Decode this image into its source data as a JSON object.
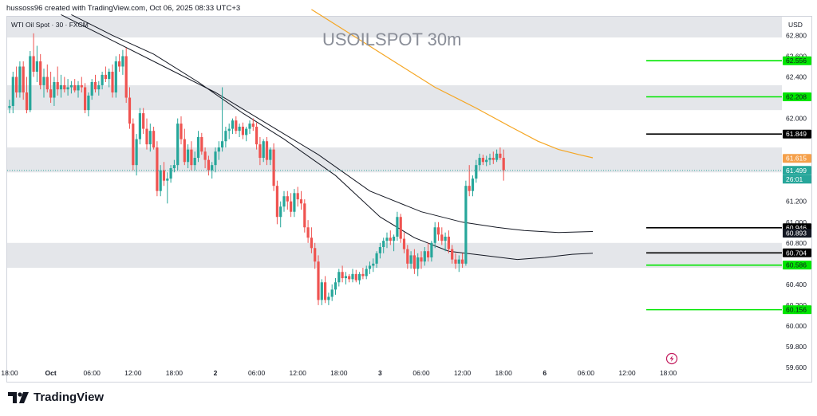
{
  "header": {
    "byline": "hussoss96 created with TradingView.com, Oct 06, 2025 08:33 UTC+3"
  },
  "footer": {
    "brand": "TradingView"
  },
  "chart_data": {
    "type": "candlestick",
    "title": "USOILSPOT 30m",
    "symbol_label": "WTI Oil Spot · 30 · FXCM",
    "currency": "USD",
    "ylim": [
      59.6,
      62.98
    ],
    "y_ticks": [
      {
        "v": 62.8,
        "label": "62.800"
      },
      {
        "v": 62.6,
        "label": "62.600"
      },
      {
        "v": 62.4,
        "label": "62.400"
      },
      {
        "v": 62.0,
        "label": "62.000"
      },
      {
        "v": 61.2,
        "label": "61.200"
      },
      {
        "v": 61.0,
        "label": "61.000"
      },
      {
        "v": 60.8,
        "label": "60.800"
      },
      {
        "v": 60.4,
        "label": "60.400"
      },
      {
        "v": 60.2,
        "label": "60.200"
      },
      {
        "v": 60.0,
        "label": "60.000"
      },
      {
        "v": 59.8,
        "label": "59.800"
      },
      {
        "v": 59.6,
        "label": "59.600"
      }
    ],
    "x_labels": [
      {
        "label": "18:00",
        "i": 0
      },
      {
        "label": "Oct",
        "i": 12
      },
      {
        "label": "06:00",
        "i": 24
      },
      {
        "label": "12:00",
        "i": 36
      },
      {
        "label": "18:00",
        "i": 48
      },
      {
        "label": "2",
        "i": 60
      },
      {
        "label": "06:00",
        "i": 72
      },
      {
        "label": "12:00",
        "i": 84
      },
      {
        "label": "18:00",
        "i": 96
      },
      {
        "label": "3",
        "i": 108
      },
      {
        "label": "06:00",
        "i": 120
      },
      {
        "label": "12:00",
        "i": 132
      },
      {
        "label": "18:00",
        "i": 144
      },
      {
        "label": "6",
        "i": 156
      },
      {
        "label": "06:00",
        "i": 168
      },
      {
        "label": "12:00",
        "i": 180
      },
      {
        "label": "18:00",
        "i": 192
      }
    ],
    "zones": [
      {
        "from": 62.78,
        "to": 62.98
      },
      {
        "from": 62.08,
        "to": 62.32
      },
      {
        "from": 61.48,
        "to": 61.72
      },
      {
        "from": 60.56,
        "to": 60.8
      }
    ],
    "levels": [
      {
        "value": 62.556,
        "label": "62.556",
        "color": "#00e600"
      },
      {
        "value": 62.208,
        "label": "62.208",
        "color": "#00e600"
      },
      {
        "value": 61.849,
        "label": "61.849",
        "color": "#000000"
      },
      {
        "value": 60.946,
        "label": "60.946",
        "color": "#000000"
      },
      {
        "value": 60.704,
        "label": "60.704",
        "color": "#000000"
      },
      {
        "value": 60.586,
        "label": "60.586",
        "color": "#00e600"
      },
      {
        "value": 60.156,
        "label": "60.156",
        "color": "#00e600"
      }
    ],
    "price_tags": [
      {
        "value": 61.615,
        "label": "61.615",
        "bg": "#f5a04a",
        "fg": "#ffffff"
      },
      {
        "value": 61.499,
        "label": "61.499",
        "bg": "#26a69a",
        "fg": "#ffffff"
      },
      {
        "value": 60.893,
        "label": "60.893",
        "bg": "#131722",
        "fg": "#ffffff"
      }
    ],
    "countdown": "26:01",
    "last_price": 61.499,
    "colors": {
      "up": "#26a69a",
      "down": "#ef5350",
      "ma_orange": "#f5a623",
      "ma_dark": "#131722"
    },
    "candles": [
      [
        62.1,
        62.18,
        62.05,
        62.12
      ],
      [
        62.12,
        62.45,
        62.05,
        62.4
      ],
      [
        62.4,
        62.5,
        62.2,
        62.25
      ],
      [
        62.25,
        62.55,
        62.2,
        62.5
      ],
      [
        62.5,
        62.55,
        62.18,
        62.25
      ],
      [
        62.25,
        62.4,
        62.05,
        62.08
      ],
      [
        62.08,
        62.65,
        62.06,
        62.6
      ],
      [
        62.6,
        62.82,
        62.4,
        62.45
      ],
      [
        62.45,
        62.7,
        62.35,
        62.55
      ],
      [
        62.55,
        62.62,
        62.28,
        62.32
      ],
      [
        62.32,
        62.48,
        62.2,
        62.4
      ],
      [
        62.4,
        62.52,
        62.25,
        62.28
      ],
      [
        62.28,
        62.45,
        62.15,
        62.2
      ],
      [
        62.2,
        62.4,
        62.12,
        62.35
      ],
      [
        62.35,
        62.5,
        62.22,
        62.28
      ],
      [
        62.28,
        62.42,
        62.2,
        62.32
      ],
      [
        62.32,
        62.4,
        62.25,
        62.28
      ],
      [
        62.28,
        62.38,
        62.22,
        62.3
      ],
      [
        62.3,
        62.36,
        62.24,
        62.32
      ],
      [
        62.32,
        62.38,
        62.25,
        62.27
      ],
      [
        62.27,
        62.36,
        62.2,
        62.32
      ],
      [
        62.32,
        62.4,
        62.25,
        62.3
      ],
      [
        62.3,
        62.34,
        62.05,
        62.08
      ],
      [
        62.08,
        62.25,
        62.02,
        62.22
      ],
      [
        62.22,
        62.38,
        62.18,
        62.35
      ],
      [
        62.35,
        62.42,
        62.25,
        62.28
      ],
      [
        62.28,
        62.36,
        62.22,
        62.32
      ],
      [
        62.32,
        62.45,
        62.28,
        62.42
      ],
      [
        62.42,
        62.5,
        62.35,
        62.38
      ],
      [
        62.38,
        62.48,
        62.3,
        62.45
      ],
      [
        62.45,
        62.52,
        62.2,
        62.25
      ],
      [
        62.25,
        62.6,
        62.2,
        62.55
      ],
      [
        62.55,
        62.62,
        62.45,
        62.5
      ],
      [
        62.5,
        62.66,
        62.42,
        62.6
      ],
      [
        62.6,
        62.68,
        62.15,
        62.2
      ],
      [
        62.2,
        62.3,
        61.9,
        61.95
      ],
      [
        61.95,
        62.0,
        61.5,
        61.55
      ],
      [
        61.55,
        61.85,
        61.45,
        61.8
      ],
      [
        61.8,
        62.1,
        61.75,
        62.05
      ],
      [
        62.05,
        62.1,
        61.85,
        61.9
      ],
      [
        61.9,
        62.0,
        61.7,
        61.75
      ],
      [
        61.75,
        61.95,
        61.68,
        61.88
      ],
      [
        61.88,
        61.92,
        61.7,
        61.72
      ],
      [
        61.72,
        61.78,
        61.25,
        61.3
      ],
      [
        61.3,
        61.55,
        61.25,
        61.5
      ],
      [
        61.5,
        61.58,
        61.35,
        61.4
      ],
      [
        61.4,
        61.48,
        61.18,
        61.42
      ],
      [
        61.42,
        61.55,
        61.38,
        61.52
      ],
      [
        61.52,
        61.6,
        61.48,
        61.55
      ],
      [
        61.55,
        62.0,
        61.5,
        61.95
      ],
      [
        61.95,
        62.02,
        61.75,
        61.8
      ],
      [
        61.8,
        61.9,
        61.55,
        61.58
      ],
      [
        61.58,
        61.75,
        61.52,
        61.7
      ],
      [
        61.7,
        61.78,
        61.5,
        61.55
      ],
      [
        61.55,
        61.68,
        61.5,
        61.62
      ],
      [
        61.62,
        61.88,
        61.58,
        61.82
      ],
      [
        61.82,
        61.86,
        61.65,
        61.68
      ],
      [
        61.68,
        61.72,
        61.52,
        61.6
      ],
      [
        61.6,
        61.64,
        61.45,
        61.5
      ],
      [
        61.5,
        61.58,
        61.42,
        61.55
      ],
      [
        61.55,
        61.72,
        61.48,
        61.68
      ],
      [
        61.68,
        61.78,
        61.6,
        61.72
      ],
      [
        61.72,
        62.3,
        61.68,
        61.78
      ],
      [
        61.78,
        61.92,
        61.72,
        61.88
      ],
      [
        61.88,
        61.95,
        61.8,
        61.9
      ],
      [
        61.9,
        62.0,
        61.85,
        61.98
      ],
      [
        61.98,
        62.02,
        61.85,
        61.88
      ],
      [
        61.88,
        61.95,
        61.82,
        61.92
      ],
      [
        61.92,
        61.96,
        61.8,
        61.84
      ],
      [
        61.84,
        61.92,
        61.78,
        61.9
      ],
      [
        61.9,
        61.98,
        61.85,
        61.95
      ],
      [
        61.95,
        62.0,
        61.88,
        61.92
      ],
      [
        61.92,
        61.96,
        61.7,
        61.75
      ],
      [
        61.75,
        61.82,
        61.55,
        61.62
      ],
      [
        61.62,
        61.8,
        61.58,
        61.78
      ],
      [
        61.78,
        61.82,
        61.55,
        61.6
      ],
      [
        61.6,
        61.72,
        61.55,
        61.7
      ],
      [
        61.7,
        61.76,
        61.3,
        61.35
      ],
      [
        61.35,
        61.4,
        60.98,
        61.05
      ],
      [
        61.05,
        61.2,
        60.95,
        61.15
      ],
      [
        61.15,
        61.3,
        61.1,
        61.25
      ],
      [
        61.25,
        61.3,
        61.12,
        61.2
      ],
      [
        61.2,
        61.28,
        61.05,
        61.1
      ],
      [
        61.1,
        61.32,
        61.05,
        61.28
      ],
      [
        61.28,
        61.34,
        61.15,
        61.22
      ],
      [
        61.22,
        61.3,
        61.12,
        61.18
      ],
      [
        61.18,
        61.22,
        60.9,
        60.95
      ],
      [
        60.95,
        61.02,
        60.8,
        60.85
      ],
      [
        60.85,
        60.95,
        60.7,
        60.75
      ],
      [
        60.75,
        60.8,
        60.55,
        60.62
      ],
      [
        60.62,
        60.68,
        60.2,
        60.25
      ],
      [
        60.25,
        60.45,
        60.2,
        60.42
      ],
      [
        60.42,
        60.48,
        60.22,
        60.25
      ],
      [
        60.25,
        60.32,
        60.2,
        60.28
      ],
      [
        60.28,
        60.4,
        60.24,
        60.35
      ],
      [
        60.35,
        60.46,
        60.3,
        60.42
      ],
      [
        60.42,
        60.55,
        60.38,
        60.52
      ],
      [
        60.52,
        60.58,
        60.42,
        60.46
      ],
      [
        60.46,
        60.52,
        60.4,
        60.48
      ],
      [
        60.48,
        60.5,
        60.42,
        60.45
      ],
      [
        60.45,
        60.55,
        60.42,
        60.5
      ],
      [
        60.5,
        60.54,
        60.42,
        60.44
      ],
      [
        60.44,
        60.52,
        60.4,
        60.5
      ],
      [
        60.5,
        60.56,
        60.45,
        60.48
      ],
      [
        60.48,
        60.58,
        60.45,
        60.55
      ],
      [
        60.55,
        60.62,
        60.5,
        60.58
      ],
      [
        60.58,
        60.65,
        60.52,
        60.6
      ],
      [
        60.6,
        60.72,
        60.56,
        60.7
      ],
      [
        60.7,
        60.8,
        60.65,
        60.76
      ],
      [
        60.76,
        60.85,
        60.7,
        60.82
      ],
      [
        60.82,
        60.9,
        60.75,
        60.85
      ],
      [
        60.85,
        60.92,
        60.78,
        60.82
      ],
      [
        60.82,
        60.88,
        60.72,
        60.86
      ],
      [
        60.86,
        61.1,
        60.82,
        61.05
      ],
      [
        61.05,
        61.08,
        60.8,
        60.84
      ],
      [
        60.84,
        60.9,
        60.7,
        60.74
      ],
      [
        60.74,
        60.78,
        60.55,
        60.6
      ],
      [
        60.6,
        60.72,
        60.55,
        60.68
      ],
      [
        60.68,
        60.74,
        60.5,
        60.55
      ],
      [
        60.55,
        60.7,
        60.48,
        60.66
      ],
      [
        60.66,
        60.72,
        60.55,
        60.62
      ],
      [
        60.62,
        60.76,
        60.58,
        60.72
      ],
      [
        60.72,
        60.8,
        60.62,
        60.66
      ],
      [
        60.66,
        60.82,
        60.62,
        60.8
      ],
      [
        60.8,
        61.0,
        60.75,
        60.95
      ],
      [
        60.95,
        61.0,
        60.82,
        60.88
      ],
      [
        60.88,
        60.95,
        60.78,
        60.82
      ],
      [
        60.82,
        60.9,
        60.72,
        60.86
      ],
      [
        60.86,
        60.92,
        60.7,
        60.74
      ],
      [
        60.74,
        60.78,
        60.6,
        60.64
      ],
      [
        60.64,
        60.7,
        60.55,
        60.6
      ],
      [
        60.6,
        60.68,
        60.52,
        60.64
      ],
      [
        60.64,
        60.7,
        60.56,
        60.6
      ],
      [
        60.6,
        61.4,
        60.58,
        61.35
      ],
      [
        61.35,
        61.55,
        61.25,
        61.3
      ],
      [
        61.3,
        61.45,
        61.25,
        61.42
      ],
      [
        61.42,
        61.6,
        61.38,
        61.55
      ],
      [
        61.55,
        61.66,
        61.5,
        61.62
      ],
      [
        61.62,
        61.65,
        61.55,
        61.58
      ],
      [
        61.58,
        61.64,
        61.54,
        61.6
      ],
      [
        61.6,
        61.66,
        61.55,
        61.62
      ],
      [
        61.62,
        61.68,
        61.56,
        61.6
      ],
      [
        61.6,
        61.7,
        61.58,
        61.66
      ],
      [
        61.66,
        61.72,
        61.6,
        61.62
      ],
      [
        61.62,
        61.7,
        61.4,
        61.5
      ]
    ],
    "ma_orange": [
      [
        88,
        63.05
      ],
      [
        100,
        62.8
      ],
      [
        112,
        62.55
      ],
      [
        124,
        62.3
      ],
      [
        136,
        62.1
      ],
      [
        146,
        61.92
      ],
      [
        154,
        61.78
      ],
      [
        160,
        61.7
      ],
      [
        166,
        61.65
      ],
      [
        170,
        61.62
      ]
    ],
    "ma_upper": [
      [
        15,
        63.0
      ],
      [
        30,
        62.75
      ],
      [
        45,
        62.5
      ],
      [
        60,
        62.25
      ],
      [
        75,
        61.95
      ],
      [
        90,
        61.65
      ],
      [
        105,
        61.3
      ],
      [
        120,
        61.1
      ],
      [
        132,
        61.0
      ],
      [
        142,
        60.95
      ],
      [
        150,
        60.92
      ],
      [
        160,
        60.9
      ],
      [
        170,
        60.91
      ]
    ],
    "ma_lower": [
      [
        18,
        63.0
      ],
      [
        30,
        62.8
      ],
      [
        42,
        62.62
      ],
      [
        55,
        62.35
      ],
      [
        68,
        62.05
      ],
      [
        80,
        61.8
      ],
      [
        95,
        61.45
      ],
      [
        108,
        61.05
      ],
      [
        118,
        60.85
      ],
      [
        128,
        60.72
      ],
      [
        138,
        60.68
      ],
      [
        148,
        60.64
      ],
      [
        156,
        60.66
      ],
      [
        164,
        60.69
      ],
      [
        170,
        60.7
      ]
    ]
  }
}
